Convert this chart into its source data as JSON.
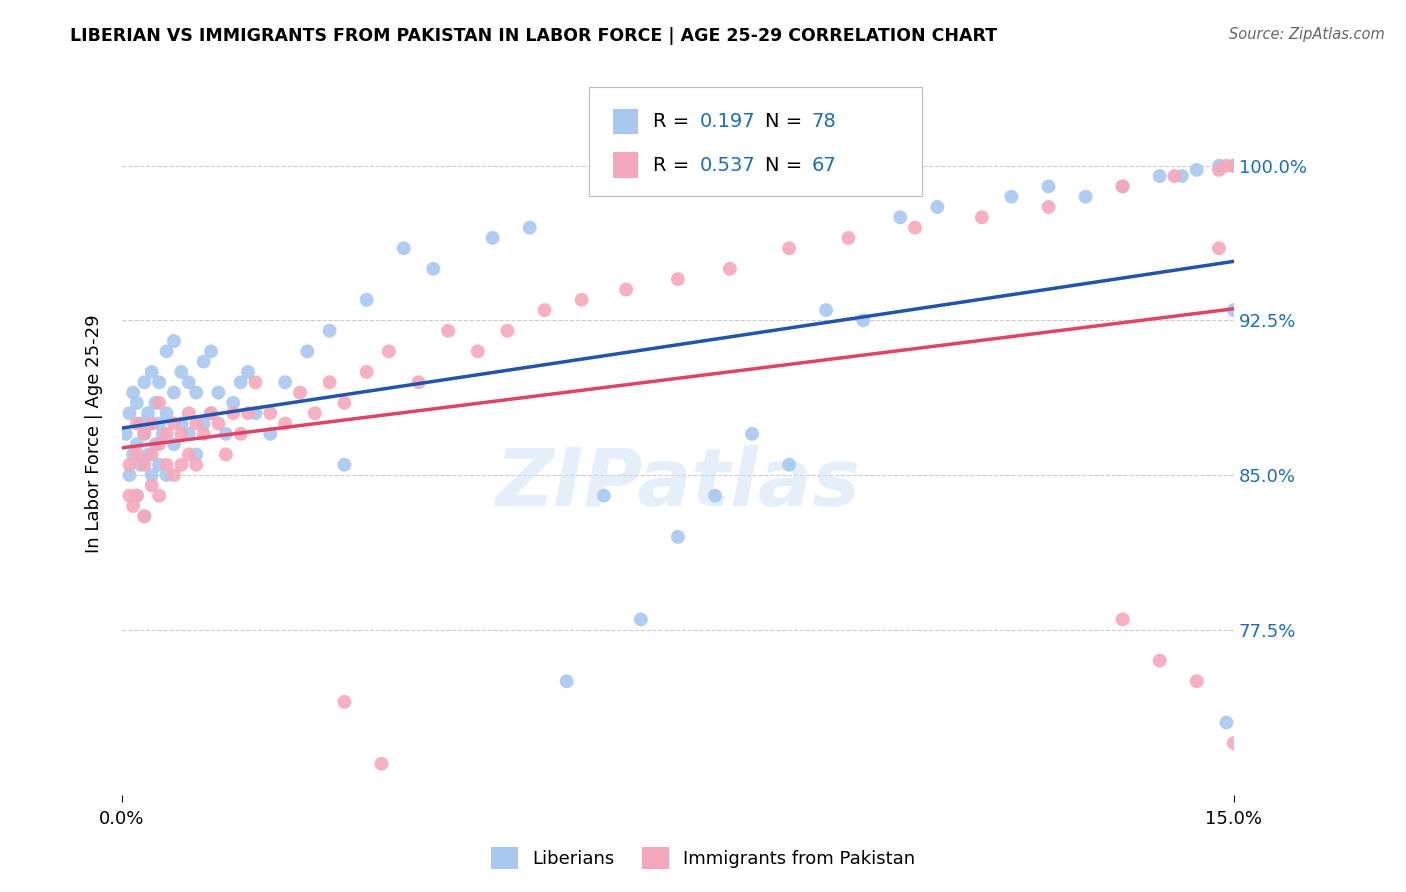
{
  "title": "LIBERIAN VS IMMIGRANTS FROM PAKISTAN IN LABOR FORCE | AGE 25-29 CORRELATION CHART",
  "source": "Source: ZipAtlas.com",
  "ylabel_label": "In Labor Force | Age 25-29",
  "yticks": [
    0.775,
    0.85,
    0.925,
    1.0
  ],
  "ytick_labels": [
    "77.5%",
    "85.0%",
    "92.5%",
    "100.0%"
  ],
  "xlim": [
    0.0,
    0.15
  ],
  "ylim": [
    0.695,
    1.045
  ],
  "blue_color": "#A8C8F0",
  "pink_color": "#F5A8BB",
  "blue_line_color": "#2255AA",
  "pink_line_color": "#DD4466",
  "R_blue": 0.197,
  "N_blue": 78,
  "R_pink": 0.537,
  "N_pink": 67,
  "watermark_text": "ZIPatlas",
  "legend_label_blue": "Liberians",
  "legend_label_pink": "Immigrants from Pakistan",
  "blue_scatter_x": [
    0.0005,
    0.001,
    0.001,
    0.0015,
    0.0015,
    0.002,
    0.002,
    0.002,
    0.0025,
    0.0025,
    0.003,
    0.003,
    0.003,
    0.0035,
    0.0035,
    0.004,
    0.004,
    0.004,
    0.0045,
    0.0045,
    0.005,
    0.005,
    0.005,
    0.0055,
    0.006,
    0.006,
    0.006,
    0.007,
    0.007,
    0.007,
    0.008,
    0.008,
    0.009,
    0.009,
    0.01,
    0.01,
    0.011,
    0.011,
    0.012,
    0.012,
    0.013,
    0.014,
    0.015,
    0.016,
    0.017,
    0.018,
    0.02,
    0.022,
    0.025,
    0.028,
    0.03,
    0.033,
    0.038,
    0.042,
    0.05,
    0.055,
    0.06,
    0.065,
    0.07,
    0.075,
    0.08,
    0.085,
    0.09,
    0.095,
    0.1,
    0.105,
    0.11,
    0.12,
    0.125,
    0.13,
    0.135,
    0.14,
    0.143,
    0.145,
    0.148,
    0.149,
    0.15,
    0.15
  ],
  "blue_scatter_y": [
    0.87,
    0.85,
    0.88,
    0.86,
    0.89,
    0.84,
    0.865,
    0.885,
    0.855,
    0.875,
    0.83,
    0.87,
    0.895,
    0.86,
    0.88,
    0.85,
    0.875,
    0.9,
    0.865,
    0.885,
    0.855,
    0.875,
    0.895,
    0.87,
    0.85,
    0.88,
    0.91,
    0.865,
    0.89,
    0.915,
    0.875,
    0.9,
    0.87,
    0.895,
    0.86,
    0.89,
    0.875,
    0.905,
    0.88,
    0.91,
    0.89,
    0.87,
    0.885,
    0.895,
    0.9,
    0.88,
    0.87,
    0.895,
    0.91,
    0.92,
    0.855,
    0.935,
    0.96,
    0.95,
    0.965,
    0.97,
    0.75,
    0.84,
    0.78,
    0.82,
    0.84,
    0.87,
    0.855,
    0.93,
    0.925,
    0.975,
    0.98,
    0.985,
    0.99,
    0.985,
    0.99,
    0.995,
    0.995,
    0.998,
    1.0,
    0.73,
    0.93,
    1.0
  ],
  "pink_scatter_x": [
    0.001,
    0.001,
    0.0015,
    0.002,
    0.002,
    0.002,
    0.003,
    0.003,
    0.003,
    0.004,
    0.004,
    0.004,
    0.005,
    0.005,
    0.005,
    0.006,
    0.006,
    0.007,
    0.007,
    0.008,
    0.008,
    0.009,
    0.009,
    0.01,
    0.01,
    0.011,
    0.012,
    0.013,
    0.014,
    0.015,
    0.016,
    0.017,
    0.018,
    0.02,
    0.022,
    0.024,
    0.026,
    0.028,
    0.03,
    0.033,
    0.036,
    0.04,
    0.044,
    0.048,
    0.052,
    0.057,
    0.062,
    0.068,
    0.075,
    0.082,
    0.09,
    0.098,
    0.107,
    0.116,
    0.125,
    0.135,
    0.142,
    0.148,
    0.149,
    0.15,
    0.15,
    0.148,
    0.145,
    0.14,
    0.135,
    0.03,
    0.035
  ],
  "pink_scatter_y": [
    0.84,
    0.855,
    0.835,
    0.84,
    0.86,
    0.875,
    0.83,
    0.855,
    0.87,
    0.845,
    0.86,
    0.875,
    0.84,
    0.865,
    0.885,
    0.855,
    0.87,
    0.85,
    0.875,
    0.855,
    0.87,
    0.86,
    0.88,
    0.855,
    0.875,
    0.87,
    0.88,
    0.875,
    0.86,
    0.88,
    0.87,
    0.88,
    0.895,
    0.88,
    0.875,
    0.89,
    0.88,
    0.895,
    0.885,
    0.9,
    0.91,
    0.895,
    0.92,
    0.91,
    0.92,
    0.93,
    0.935,
    0.94,
    0.945,
    0.95,
    0.96,
    0.965,
    0.97,
    0.975,
    0.98,
    0.99,
    0.995,
    0.998,
    1.0,
    1.0,
    0.72,
    0.96,
    0.75,
    0.76,
    0.78,
    0.74,
    0.71
  ]
}
